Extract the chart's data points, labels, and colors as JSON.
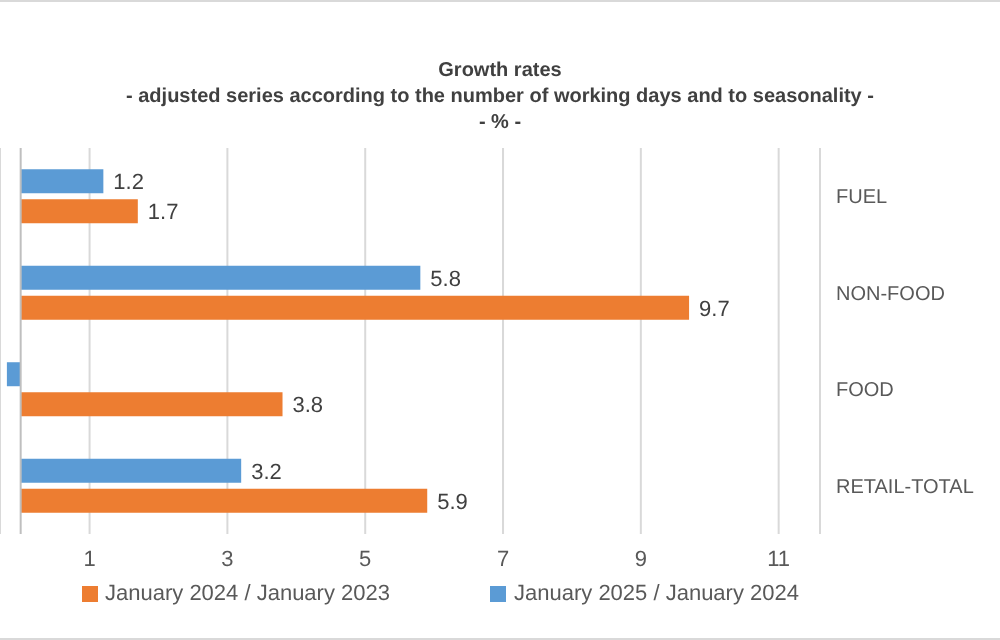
{
  "chart_data": {
    "type": "bar",
    "orientation": "horizontal",
    "title": "Growth rates",
    "subtitle": "- adjusted series according to the number of working days and to seasonality -",
    "annotations": [
      "- % -"
    ],
    "categories": [
      "FUEL",
      "NON-FOOD",
      "FOOD",
      "RETAIL-TOTAL"
    ],
    "series": [
      {
        "name": "January 2025 / January 2024",
        "color": "#5b9bd5",
        "values": [
          1.2,
          5.8,
          -0.2,
          3.2
        ],
        "value_labels": [
          "1.2",
          "5.8",
          null,
          "3.2"
        ]
      },
      {
        "name": "January 2024 / January 2023",
        "color": "#ed7d31",
        "values": [
          1.7,
          9.7,
          3.8,
          5.9
        ],
        "value_labels": [
          "1.7",
          "9.7",
          "3.8",
          "5.9"
        ]
      }
    ],
    "xlim": [
      -0.3,
      11.6
    ],
    "xticks": [
      1,
      3,
      5,
      7,
      9,
      11
    ],
    "grid": "x",
    "legend": "bottom",
    "ref_lines": [
      {
        "axis": "x",
        "value": 0,
        "color": "#bfbfbf"
      }
    ]
  }
}
